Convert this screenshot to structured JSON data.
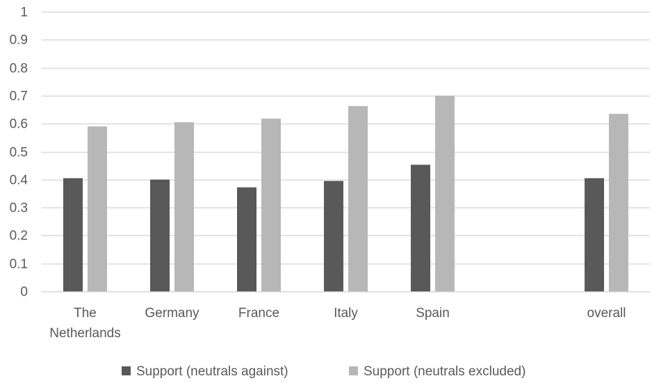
{
  "chart_data": {
    "type": "bar",
    "categories": [
      [
        "The",
        "Netherlands"
      ],
      [
        "Germany"
      ],
      [
        "France"
      ],
      [
        "Italy"
      ],
      [
        "Spain"
      ],
      [
        ""
      ],
      [
        "overall"
      ]
    ],
    "series": [
      {
        "name": "Support (neutrals against)",
        "color": "#595959",
        "values": [
          0.405,
          0.4,
          0.372,
          0.395,
          0.453,
          null,
          0.405
        ]
      },
      {
        "name": "Support (neutrals excluded)",
        "color": "#b7b7b7",
        "values": [
          0.59,
          0.605,
          0.618,
          0.663,
          0.7,
          null,
          0.635
        ]
      }
    ],
    "ylim": [
      0,
      1
    ],
    "yticks": [
      "0",
      "0.1",
      "0.2",
      "0.3",
      "0.4",
      "0.5",
      "0.6",
      "0.7",
      "0.8",
      "0.9",
      "1"
    ],
    "grid": true,
    "legend": "bottom-center",
    "gridColor": "#d9d9d9",
    "textColor": "#595959"
  }
}
